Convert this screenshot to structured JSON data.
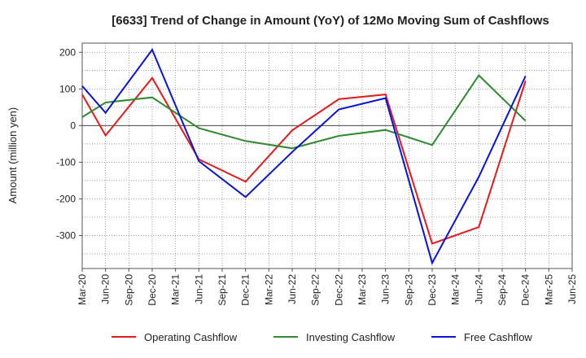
{
  "chart_data": {
    "type": "line",
    "title": "[6633]  Trend of Change in Amount (YoY) of 12Mo Moving Sum of Cashflows",
    "xlabel": "",
    "ylabel": "Amount (million yen)",
    "ylim": [
      -390,
      225
    ],
    "yticks": [
      200,
      100,
      0,
      -100,
      -200,
      -300
    ],
    "grid": true,
    "legend_position": "bottom",
    "categories": [
      "Mar-20",
      "Jun-20",
      "Sep-20",
      "Dec-20",
      "Mar-21",
      "Jun-21",
      "Sep-21",
      "Dec-21",
      "Mar-22",
      "Jun-22",
      "Sep-22",
      "Dec-22",
      "Mar-23",
      "Jun-23",
      "Sep-23",
      "Dec-23",
      "Mar-24",
      "Jun-24",
      "Sep-24",
      "Dec-24",
      "Mar-25",
      "Jun-25"
    ],
    "series": [
      {
        "name": "Operating Cashflow",
        "color": "#e41a1c",
        "values": [
          85,
          -27,
          null,
          130,
          null,
          -92,
          null,
          -153,
          null,
          -13,
          null,
          72,
          null,
          85,
          null,
          -322,
          null,
          -277,
          null,
          122,
          null,
          null
        ]
      },
      {
        "name": "Investing Cashflow",
        "color": "#2e8b2e",
        "values": [
          23,
          63,
          null,
          77,
          null,
          -7,
          null,
          -42,
          null,
          -62,
          null,
          -28,
          null,
          -12,
          null,
          -53,
          null,
          137,
          null,
          13,
          null,
          null
        ]
      },
      {
        "name": "Free Cashflow",
        "color": "#0a14d6",
        "values": [
          108,
          35,
          null,
          207,
          null,
          -97,
          null,
          -195,
          null,
          -72,
          null,
          44,
          null,
          75,
          null,
          -375,
          null,
          -140,
          null,
          135,
          null,
          null
        ]
      }
    ]
  }
}
